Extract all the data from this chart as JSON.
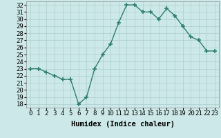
{
  "x": [
    0,
    1,
    2,
    3,
    4,
    5,
    6,
    7,
    8,
    9,
    10,
    11,
    12,
    13,
    14,
    15,
    16,
    17,
    18,
    19,
    20,
    21,
    22,
    23
  ],
  "y": [
    23,
    23,
    22.5,
    22,
    21.5,
    21.5,
    18,
    19,
    23,
    25,
    26.5,
    29.5,
    32,
    32,
    31,
    31,
    30,
    31.5,
    30.5,
    29,
    27.5,
    27,
    25.5,
    25.5
  ],
  "xlabel": "Humidex (Indice chaleur)",
  "xlim": [
    -0.5,
    23.5
  ],
  "ylim": [
    17.5,
    32.5
  ],
  "yticks": [
    18,
    19,
    20,
    21,
    22,
    23,
    24,
    25,
    26,
    27,
    28,
    29,
    30,
    31,
    32
  ],
  "xtick_labels": [
    "0",
    "1",
    "2",
    "3",
    "4",
    "5",
    "6",
    "7",
    "8",
    "9",
    "10",
    "11",
    "12",
    "13",
    "14",
    "15",
    "16",
    "17",
    "18",
    "19",
    "20",
    "21",
    "22",
    "23"
  ],
  "line_color": "#2d7d6e",
  "marker": "+",
  "bg_color": "#cde8e8",
  "grid_color": "#aacece",
  "axis_fontsize": 7.5,
  "tick_fontsize": 6.5,
  "markersize": 4,
  "linewidth": 1.0
}
